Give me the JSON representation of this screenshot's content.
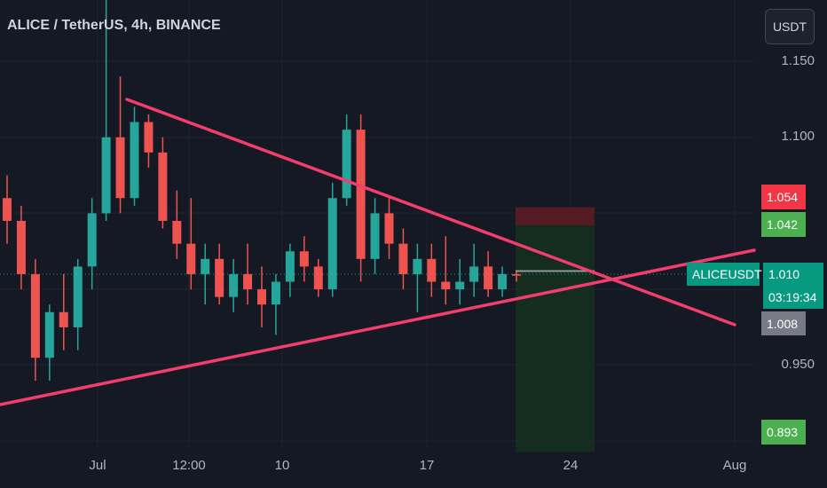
{
  "header": {
    "title": "ALICE / TetherUS, 4h, BINANCE",
    "currency": "USDT"
  },
  "colors": {
    "background": "#151924",
    "up": "#26a69a",
    "down": "#ef5350",
    "trendline": "#f23d6d",
    "stop_zone": "#5b1c22",
    "target_zone": "#15301f"
  },
  "price_tags": {
    "stop": "1.054",
    "entry": "1.042",
    "symbol": "ALICEUSDT",
    "last_price": "1.010",
    "countdown": "03:19:34",
    "prev_close": "1.008",
    "target": "0.893"
  },
  "chart_data": {
    "type": "candlestick",
    "title": "ALICE / TetherUS, 4h, BINANCE",
    "y_ticks": [
      "1.150",
      "1.100",
      "0.950"
    ],
    "x_ticks": [
      "Jul",
      "12:00",
      "10",
      "17",
      "24",
      "Aug"
    ],
    "ylim": [
      0.87,
      1.19
    ],
    "candles_ohlc_approx": [
      [
        1.06,
        1.075,
        1.03,
        1.045
      ],
      [
        1.045,
        1.055,
        1.0,
        1.01
      ],
      [
        1.01,
        1.02,
        0.94,
        0.955
      ],
      [
        0.955,
        0.99,
        0.94,
        0.985
      ],
      [
        0.985,
        1.01,
        0.96,
        0.975
      ],
      [
        0.975,
        1.02,
        0.96,
        1.015
      ],
      [
        1.015,
        1.06,
        1.0,
        1.05
      ],
      [
        1.05,
        1.2,
        1.045,
        1.1
      ],
      [
        1.1,
        1.14,
        1.05,
        1.06
      ],
      [
        1.06,
        1.12,
        1.055,
        1.11
      ],
      [
        1.11,
        1.115,
        1.08,
        1.09
      ],
      [
        1.09,
        1.1,
        1.04,
        1.045
      ],
      [
        1.045,
        1.065,
        1.02,
        1.03
      ],
      [
        1.03,
        1.06,
        1.0,
        1.01
      ],
      [
        1.01,
        1.03,
        0.99,
        1.02
      ],
      [
        1.02,
        1.03,
        0.99,
        0.995
      ],
      [
        0.995,
        1.02,
        0.985,
        1.01
      ],
      [
        1.01,
        1.03,
        0.99,
        1.0
      ],
      [
        1.0,
        1.015,
        0.975,
        0.99
      ],
      [
        0.99,
        1.01,
        0.97,
        1.005
      ],
      [
        1.005,
        1.03,
        0.995,
        1.025
      ],
      [
        1.025,
        1.035,
        1.005,
        1.015
      ],
      [
        1.015,
        1.02,
        0.995,
        1.0
      ],
      [
        1.0,
        1.07,
        0.995,
        1.06
      ],
      [
        1.06,
        1.115,
        1.055,
        1.105
      ],
      [
        1.105,
        1.115,
        1.005,
        1.02
      ],
      [
        1.02,
        1.06,
        1.01,
        1.05
      ],
      [
        1.05,
        1.06,
        1.02,
        1.03
      ],
      [
        1.03,
        1.04,
        1.0,
        1.01
      ],
      [
        1.01,
        1.03,
        0.985,
        1.02
      ],
      [
        1.02,
        1.03,
        0.995,
        1.005
      ],
      [
        1.005,
        1.035,
        0.99,
        1.0
      ],
      [
        1.0,
        1.02,
        0.99,
        1.005
      ],
      [
        1.005,
        1.03,
        0.995,
        1.015
      ],
      [
        1.015,
        1.025,
        0.995,
        1.0
      ],
      [
        1.0,
        1.015,
        0.995,
        1.01
      ],
      [
        1.01,
        1.012,
        1.005,
        1.009
      ]
    ],
    "annotations": {
      "descending_trendline": "resistance",
      "ascending_trendline": "support",
      "position_tool": {
        "entry": 1.042,
        "stop": 1.054,
        "target": 0.893
      }
    }
  }
}
